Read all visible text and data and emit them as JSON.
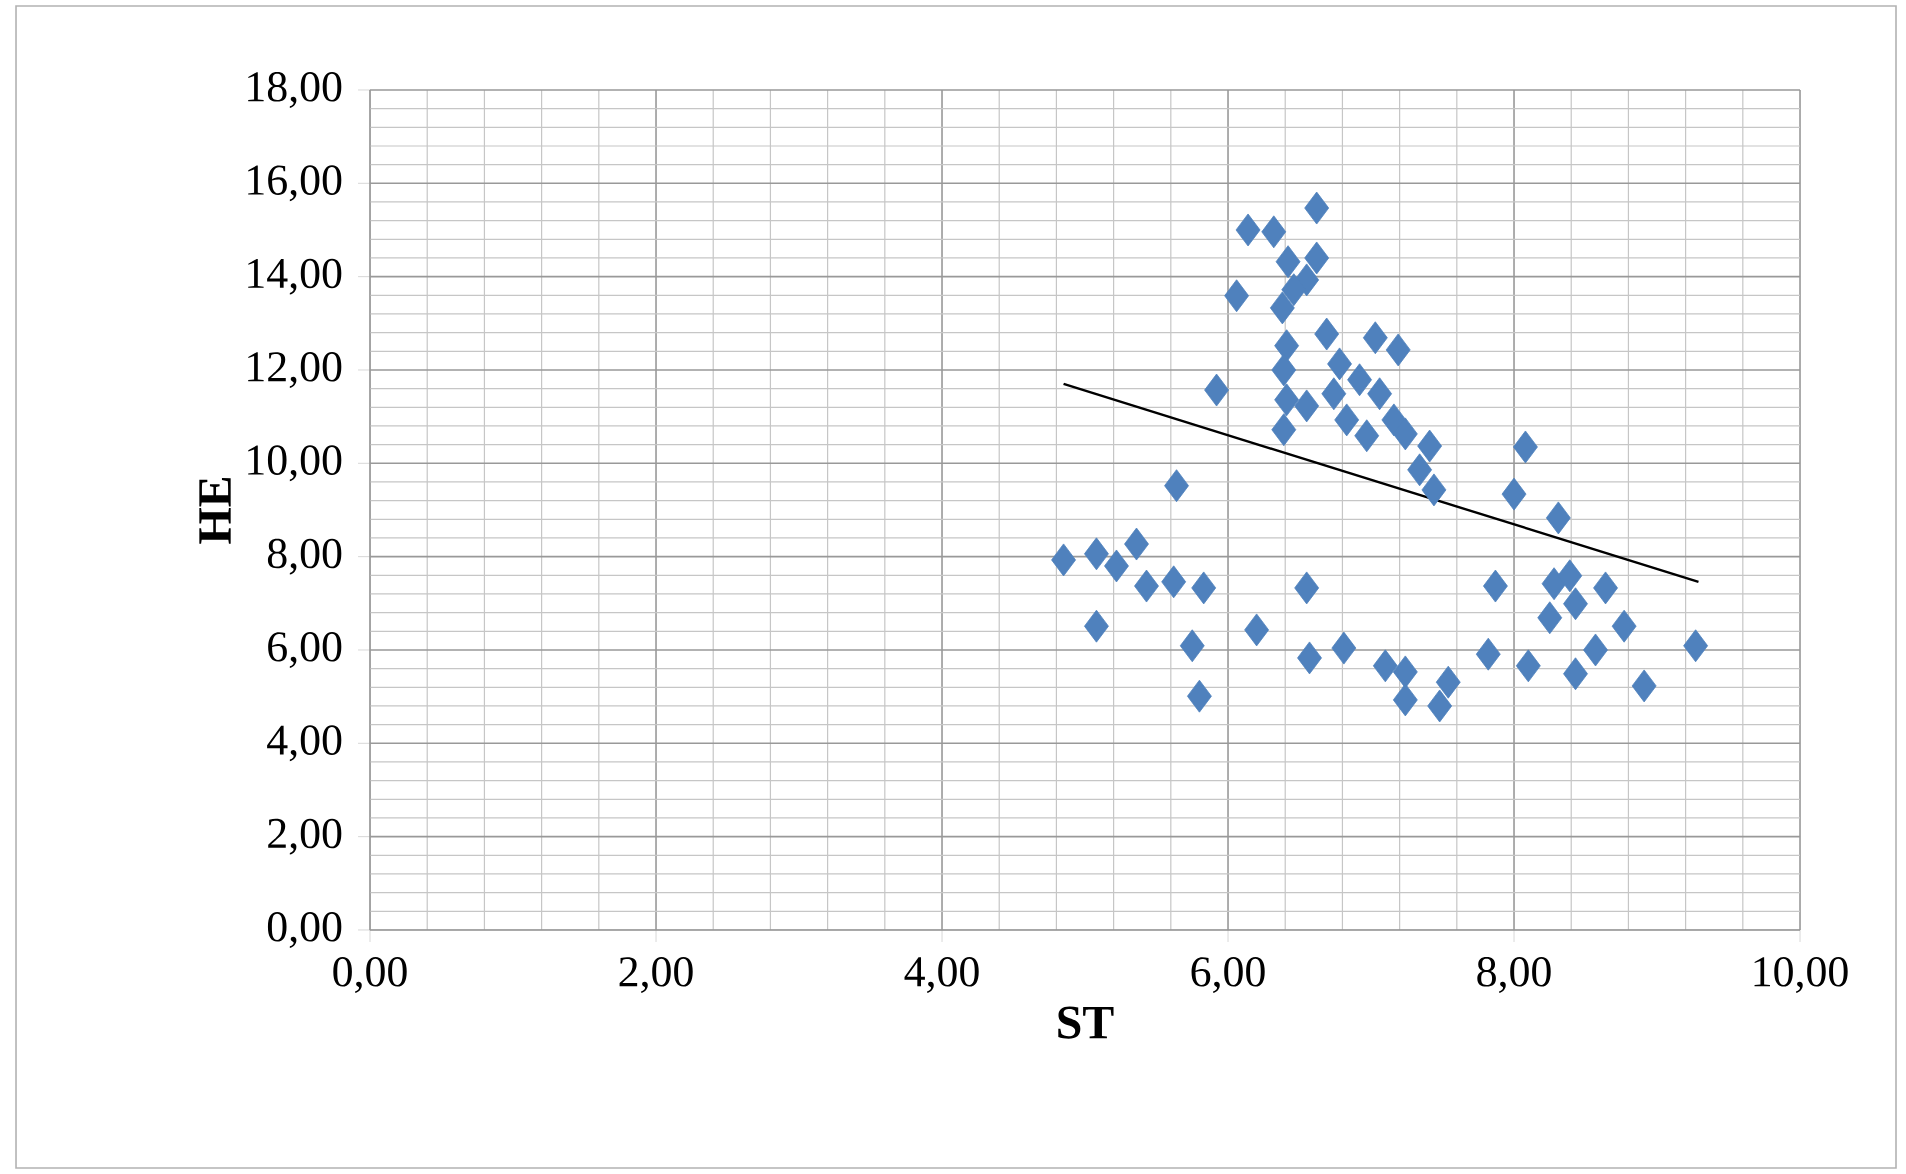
{
  "chart_data": {
    "type": "scatter",
    "xlabel": "ST",
    "ylabel": "HE",
    "xlim": [
      0,
      10
    ],
    "ylim": [
      0,
      18
    ],
    "xticks": [
      {
        "value": 0,
        "label": "0,00"
      },
      {
        "value": 2,
        "label": "2,00"
      },
      {
        "value": 4,
        "label": "4,00"
      },
      {
        "value": 6,
        "label": "6,00"
      },
      {
        "value": 8,
        "label": "8,00"
      },
      {
        "value": 10,
        "label": "10,00"
      }
    ],
    "yticks": [
      {
        "value": 0,
        "label": "0,00"
      },
      {
        "value": 2,
        "label": "2,00"
      },
      {
        "value": 4,
        "label": "4,00"
      },
      {
        "value": 6,
        "label": "6,00"
      },
      {
        "value": 8,
        "label": "8,00"
      },
      {
        "value": 10,
        "label": "10,00"
      },
      {
        "value": 12,
        "label": "12,00"
      },
      {
        "value": 14,
        "label": "14,00"
      },
      {
        "value": 16,
        "label": "16,00"
      },
      {
        "value": 18,
        "label": "18,00"
      }
    ],
    "grid": true,
    "marker": "diamond",
    "series": [
      {
        "color": "#4f81bd",
        "x": [
          6.14,
          6.32,
          6.62,
          6.42,
          6.62,
          6.55,
          6.06,
          6.38,
          6.46,
          6.41,
          6.69,
          7.03,
          7.19,
          6.39,
          6.78,
          6.92,
          6.41,
          6.55,
          6.74,
          7.06,
          6.83,
          6.97,
          6.39,
          7.16,
          7.24,
          7.41,
          7.34,
          7.44,
          5.92,
          5.64,
          4.85,
          5.08,
          5.22,
          5.36,
          5.43,
          5.62,
          5.83,
          5.08,
          5.75,
          5.8,
          6.2,
          6.55,
          6.57,
          6.81,
          7.1,
          7.24,
          7.24,
          7.48,
          7.54,
          7.82,
          8.1,
          7.87,
          8.28,
          8.39,
          8.43,
          8.64,
          8.25,
          8.77,
          8.57,
          8.43,
          8.91,
          9.27,
          8.0,
          8.31,
          8.08
        ],
        "values": [
          15.0,
          14.96,
          15.47,
          14.32,
          14.4,
          13.93,
          13.59,
          13.33,
          13.72,
          12.52,
          12.77,
          12.69,
          12.43,
          12.0,
          12.13,
          11.79,
          11.36,
          11.23,
          11.49,
          11.49,
          10.93,
          10.59,
          10.72,
          10.93,
          10.63,
          10.37,
          9.86,
          9.43,
          11.57,
          9.52,
          7.93,
          8.06,
          7.8,
          8.27,
          7.37,
          7.46,
          7.33,
          6.51,
          6.09,
          5.01,
          6.43,
          7.33,
          5.83,
          6.04,
          5.66,
          5.53,
          4.93,
          4.8,
          5.31,
          5.91,
          5.66,
          7.37,
          7.42,
          7.59,
          6.99,
          7.33,
          6.69,
          6.51,
          6.0,
          5.49,
          5.23,
          6.09,
          9.34,
          8.83,
          10.35
        ]
      },
      {
        "type": "line",
        "color": "#000000",
        "marker": "none",
        "x": [
          4.85,
          9.29
        ],
        "values": [
          11.7,
          7.46
        ]
      }
    ]
  }
}
